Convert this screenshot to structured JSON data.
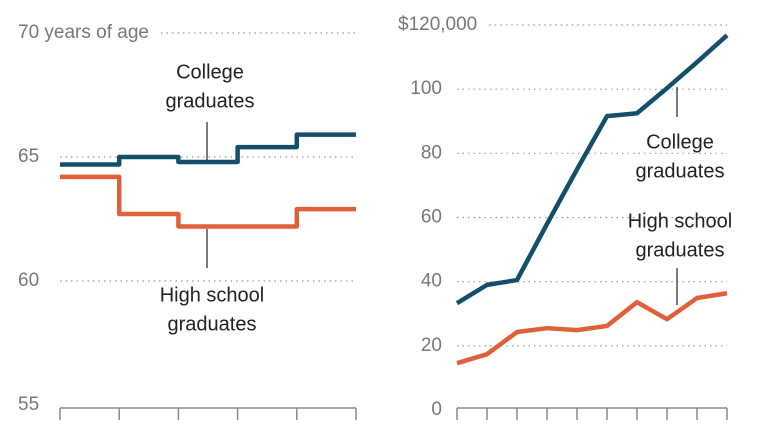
{
  "chart_data": [
    {
      "type": "step",
      "categories": [
        null,
        null,
        null,
        null,
        null
      ],
      "series": [
        {
          "name": "College graduates",
          "color": "#134f6b",
          "values": [
            64.7,
            65.0,
            64.8,
            65.4,
            65.9
          ]
        },
        {
          "name": "High school graduates",
          "color": "#e0603a",
          "values": [
            64.2,
            62.7,
            62.2,
            62.2,
            62.9
          ]
        }
      ],
      "ylim": [
        55,
        70
      ],
      "yticks": [
        55,
        60,
        65,
        {
          "value": 70,
          "label": "70 years of age"
        }
      ],
      "grid": true,
      "annotations": [
        {
          "text": [
            "College",
            "graduates"
          ]
        },
        {
          "text": [
            "High school",
            "graduates"
          ]
        }
      ]
    },
    {
      "type": "line",
      "categories": [
        null,
        null,
        null,
        null,
        null,
        null,
        null,
        null,
        null,
        null
      ],
      "series": [
        {
          "name": "College graduates",
          "color": "#134f6b",
          "values": [
            33.3,
            39,
            40.5,
            58,
            75,
            91.6,
            92.5,
            100.3,
            108.4,
            116.8
          ]
        },
        {
          "name": "High school graduates",
          "color": "#e0603a",
          "values": [
            14.6,
            17.4,
            24.3,
            25.5,
            24.9,
            26.2,
            33.6,
            28.3,
            34.9,
            36.4
          ]
        }
      ],
      "ylim": [
        0,
        120
      ],
      "yticks": [
        0,
        20,
        40,
        60,
        80,
        100,
        {
          "value": 120,
          "label": "$120,000"
        }
      ],
      "grid": true,
      "annotations": [
        {
          "text": [
            "College",
            "graduates"
          ]
        },
        {
          "text": [
            "High school",
            "graduates"
          ]
        }
      ]
    }
  ]
}
